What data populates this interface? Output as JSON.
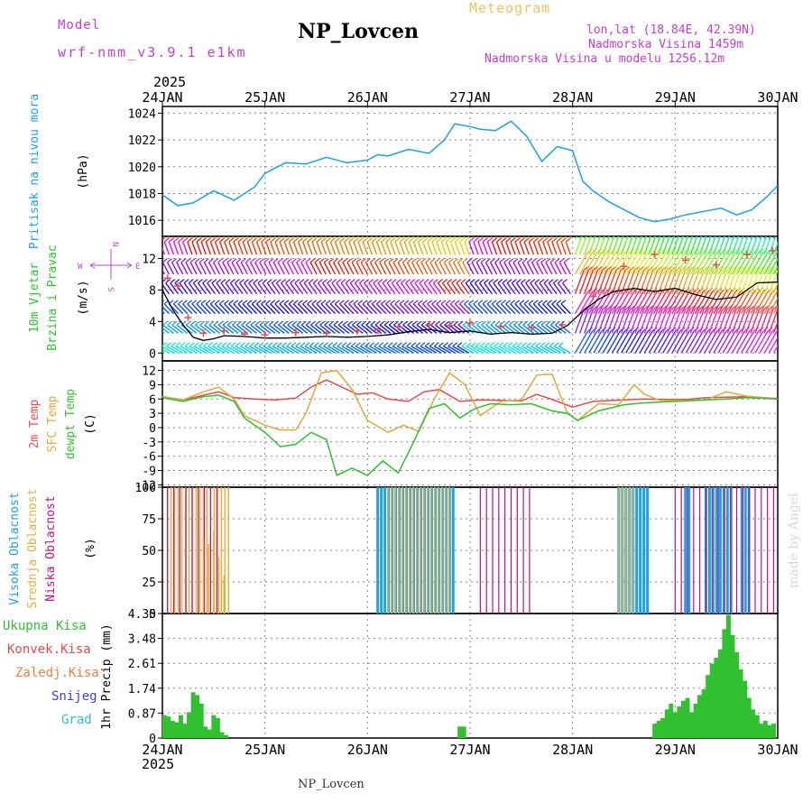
{
  "header": {
    "title": "NP_Lovcen",
    "subtitle": "Meteogram",
    "model_label": "Model",
    "model_name": "wrf-nmm_v3.9.1 e1km",
    "location": "lon,lat (18.84E, 42.39N)",
    "altitude": "Nadmorska Visina 1459m",
    "model_altitude": "Nadmorska Visina u modelu 1256.12m",
    "footer_title": "NP_Lovcen",
    "watermark": "made by Angel",
    "year_top": "2025",
    "year_bottom": "2025"
  },
  "colors": {
    "pressure": "#1ea0e6",
    "temp_2m": "#e84a4a",
    "temp_sfc": "#e0a840",
    "dewpoint": "#30c030",
    "wind_speed": "#000000",
    "gust_marker": "#e05050",
    "cloud_high": "#20a0e6",
    "cloud_mid": "#e0b040",
    "cloud_low": "#c01080",
    "precip": "#30c030",
    "grid": "#888888",
    "header_purple": "#c040d0",
    "header_orange": "#f0c060"
  },
  "chart_data": [
    {
      "type": "line",
      "name": "pressure",
      "title": "",
      "ylabel_lines": [
        "Pritisak na nivou mora",
        "(hPa)"
      ],
      "xlabels": [
        "24JAN",
        "25JAN",
        "26JAN",
        "27JAN",
        "28JAN",
        "29JAN",
        "30JAN"
      ],
      "yticks": [
        1016,
        1018,
        1020,
        1022,
        1024
      ],
      "ylim": [
        1014.8,
        1024.5
      ],
      "x_days": [
        0,
        0.15,
        0.3,
        0.5,
        0.7,
        0.9,
        1.0,
        1.2,
        1.4,
        1.6,
        1.8,
        2.0,
        2.1,
        2.2,
        2.4,
        2.6,
        2.75,
        2.85,
        3.0,
        3.1,
        3.25,
        3.4,
        3.55,
        3.7,
        3.85,
        4.0,
        4.1,
        4.2,
        4.35,
        4.5,
        4.65,
        4.8,
        4.95,
        5.1,
        5.3,
        5.45,
        5.6,
        5.75,
        5.9,
        6.0
      ],
      "values": [
        1017.9,
        1017.1,
        1017.3,
        1018.2,
        1017.5,
        1018.5,
        1019.5,
        1020.3,
        1020.2,
        1020.7,
        1020.3,
        1020.5,
        1020.9,
        1020.8,
        1021.3,
        1021.0,
        1022.0,
        1023.2,
        1023.0,
        1022.8,
        1022.7,
        1023.4,
        1022.3,
        1020.4,
        1021.5,
        1021.2,
        1018.9,
        1018.2,
        1017.4,
        1016.8,
        1016.2,
        1015.9,
        1016.1,
        1016.4,
        1016.7,
        1016.9,
        1016.4,
        1016.8,
        1017.8,
        1018.6
      ]
    },
    {
      "type": "line",
      "name": "wind",
      "ylabel_lines": [
        "10m Vjetar",
        "Brzina i Pravac",
        "(m/s)"
      ],
      "compass_labels": [
        "N",
        "S",
        "W",
        "E"
      ],
      "yticks": [
        0,
        4,
        8,
        12
      ],
      "ylim": [
        -1,
        14.8
      ],
      "barb_levels": [
        0,
        2.5,
        5,
        7.5,
        10,
        12.5,
        14.5
      ],
      "x_days": [
        0,
        0.1,
        0.2,
        0.3,
        0.4,
        0.5,
        0.6,
        0.8,
        1.0,
        1.2,
        1.4,
        1.6,
        1.8,
        2.0,
        2.2,
        2.4,
        2.6,
        2.8,
        3.0,
        3.2,
        3.4,
        3.6,
        3.8,
        3.95,
        4.1,
        4.25,
        4.4,
        4.6,
        4.8,
        5.0,
        5.2,
        5.4,
        5.6,
        5.8,
        6.0
      ],
      "values": [
        8.0,
        5.5,
        3.6,
        2.0,
        1.6,
        1.8,
        2.2,
        2.1,
        1.9,
        1.9,
        2.0,
        2.1,
        2.0,
        2.1,
        2.3,
        2.7,
        3.0,
        2.6,
        2.8,
        2.4,
        2.6,
        2.4,
        2.5,
        3.5,
        5.3,
        6.8,
        7.8,
        8.2,
        7.8,
        8.2,
        7.4,
        6.8,
        7.1,
        8.9,
        9.0
      ],
      "gust_x_days": [
        0.05,
        0.15,
        0.25,
        0.4,
        0.6,
        0.8,
        1.0,
        1.3,
        1.6,
        1.9,
        2.1,
        2.3,
        2.6,
        2.8,
        3.0,
        3.3,
        3.6,
        3.9,
        4.2,
        4.5,
        4.8,
        5.1,
        5.4,
        5.7,
        5.95
      ],
      "gust_values": [
        9.5,
        8.5,
        4.5,
        2.5,
        2.8,
        2.4,
        2.3,
        2.6,
        2.5,
        2.8,
        2.9,
        3.3,
        3.6,
        3.5,
        3.8,
        3.4,
        3.2,
        3.6,
        7.2,
        11.0,
        12.5,
        11.8,
        11.2,
        12.5,
        13.0
      ]
    },
    {
      "type": "line",
      "name": "temperature",
      "ylabel_lines": [
        "2m Temp",
        "SFC Temp",
        "dewpt Temp",
        "(C)"
      ],
      "series_labels": [
        "2m Temp",
        "SFC Temp",
        "dewpt Temp"
      ],
      "yticks": [
        -12,
        -9,
        -6,
        -3,
        0,
        3,
        6,
        9,
        12
      ],
      "ylim": [
        -12.5,
        14
      ],
      "series": [
        {
          "name": "2m Temp",
          "x_days": [
            0,
            0.2,
            0.4,
            0.55,
            0.7,
            0.9,
            1.1,
            1.3,
            1.45,
            1.6,
            1.75,
            1.9,
            2.05,
            2.2,
            2.4,
            2.55,
            2.7,
            2.9,
            3.1,
            3.3,
            3.5,
            3.65,
            3.8,
            4.0,
            4.2,
            4.5,
            4.7,
            4.9,
            5.1,
            5.3,
            5.5,
            5.7,
            6.0
          ],
          "values": [
            6.5,
            5.8,
            6.8,
            7.5,
            6.3,
            6.0,
            5.8,
            6.2,
            8.5,
            10.0,
            8.5,
            7.0,
            7.3,
            6.0,
            5.5,
            7.5,
            8.0,
            5.5,
            5.8,
            5.7,
            5.6,
            7.0,
            5.9,
            4.3,
            5.5,
            5.8,
            6.0,
            5.9,
            5.9,
            6.3,
            6.4,
            6.5,
            6.1
          ]
        },
        {
          "name": "SFC Temp",
          "x_days": [
            0,
            0.2,
            0.4,
            0.55,
            0.7,
            0.8,
            1.0,
            1.15,
            1.3,
            1.4,
            1.55,
            1.7,
            1.85,
            2.0,
            2.2,
            2.35,
            2.5,
            2.65,
            2.8,
            2.95,
            3.1,
            3.3,
            3.5,
            3.65,
            3.8,
            3.95,
            4.05,
            4.25,
            4.45,
            4.6,
            4.7,
            4.85,
            5.1,
            5.3,
            5.5,
            5.7,
            6.0
          ],
          "values": [
            6.5,
            5.8,
            7.5,
            8.5,
            6.0,
            2.5,
            0.5,
            -0.5,
            -0.5,
            3.0,
            11.5,
            12.0,
            8.0,
            1.5,
            -1.0,
            0.5,
            -0.8,
            6.0,
            11.5,
            9.0,
            2.5,
            5.5,
            5.8,
            11.0,
            11.2,
            3.0,
            1.5,
            5.0,
            4.8,
            9.0,
            7.0,
            5.7,
            5.7,
            5.8,
            7.5,
            6.6,
            6.0
          ]
        },
        {
          "name": "dewpt Temp",
          "x_days": [
            0,
            0.2,
            0.4,
            0.55,
            0.7,
            0.8,
            1.0,
            1.15,
            1.3,
            1.45,
            1.6,
            1.7,
            1.85,
            2.0,
            2.15,
            2.3,
            2.45,
            2.6,
            2.75,
            2.9,
            3.05,
            3.2,
            3.4,
            3.6,
            3.8,
            3.95,
            4.05,
            4.25,
            4.5,
            4.7,
            4.9,
            5.1,
            5.3,
            5.5,
            5.7,
            6.0
          ],
          "values": [
            6.3,
            5.5,
            6.5,
            6.8,
            5.5,
            2.0,
            -1.0,
            -4.0,
            -3.5,
            -1.0,
            -2.5,
            -10.0,
            -8.5,
            -10.0,
            -7.0,
            -9.5,
            -3.0,
            4.0,
            5.0,
            2.0,
            4.0,
            5.0,
            4.8,
            5.0,
            3.5,
            3.0,
            1.5,
            3.5,
            4.8,
            5.2,
            5.4,
            5.6,
            5.8,
            6.0,
            6.3,
            6.0
          ]
        }
      ]
    },
    {
      "type": "bar",
      "name": "clouds",
      "ylabel_lines": [
        "Visoka Oblacnost",
        "Srednja Oblacnost",
        "Niska Oblacnost",
        "(%)"
      ],
      "series_labels": [
        "Visoka Oblacnost",
        "Srednja Oblacnost",
        "Niska Oblacnost"
      ],
      "yticks": [
        0,
        25,
        50,
        75,
        100
      ],
      "ylim": [
        0,
        100
      ],
      "segments": [
        {
          "name": "high",
          "ranges": [
            [
              2.1,
              2.85
            ],
            [
              4.45,
              4.75
            ],
            [
              5.1,
              5.15
            ],
            [
              5.3,
              5.55
            ],
            [
              5.65,
              5.75
            ]
          ],
          "value": 100
        },
        {
          "name": "mid",
          "ranges": [
            [
              0.05,
              0.65
            ],
            [
              2.2,
              2.8
            ],
            [
              4.45,
              4.6
            ]
          ],
          "value": 100
        },
        {
          "name": "low",
          "ranges": [
            [
              0.05,
              0.55
            ],
            [
              3.1,
              3.6
            ],
            [
              5.0,
              6.0
            ]
          ],
          "value": 100
        }
      ],
      "mid_decay_x_days": [
        0.4,
        0.45,
        0.5,
        0.55,
        0.6
      ],
      "mid_decay_values": [
        60,
        55,
        65,
        45,
        30
      ]
    },
    {
      "type": "bar",
      "name": "precipitation",
      "ylabel_lines": [
        "1hr Precip (mm)"
      ],
      "legend_labels": [
        "Ukupna Kisa",
        "Konvek.Kisa",
        "Zaledj.Kisa",
        "Snijeg",
        "Grad"
      ],
      "yticks": [
        0,
        0.87,
        1.74,
        2.61,
        3.48,
        4.35
      ],
      "ylim": [
        0,
        4.35
      ],
      "x_days": [
        0.02,
        0.06,
        0.1,
        0.14,
        0.18,
        0.22,
        0.26,
        0.3,
        0.34,
        0.38,
        0.42,
        0.46,
        0.5,
        0.54,
        0.58,
        0.62,
        2.9,
        2.94,
        4.8,
        4.84,
        4.88,
        4.92,
        4.96,
        5.0,
        5.04,
        5.08,
        5.12,
        5.16,
        5.2,
        5.24,
        5.28,
        5.32,
        5.36,
        5.4,
        5.44,
        5.48,
        5.52,
        5.56,
        5.6,
        5.64,
        5.68,
        5.72,
        5.76,
        5.8,
        5.84,
        5.88,
        5.92,
        5.96
      ],
      "values": [
        0.8,
        0.75,
        0.6,
        0.55,
        0.8,
        0.5,
        0.9,
        1.6,
        1.5,
        1.2,
        0.4,
        0.3,
        0.8,
        0.7,
        0.2,
        0.1,
        0.4,
        0.4,
        0.5,
        0.6,
        0.7,
        1.0,
        1.2,
        0.9,
        1.1,
        1.3,
        1.4,
        0.9,
        1.2,
        1.5,
        1.7,
        2.2,
        2.6,
        2.8,
        3.1,
        3.8,
        4.3,
        3.6,
        3.0,
        2.4,
        2.0,
        1.4,
        1.0,
        0.8,
        0.5,
        0.6,
        0.45,
        0.5
      ]
    }
  ]
}
